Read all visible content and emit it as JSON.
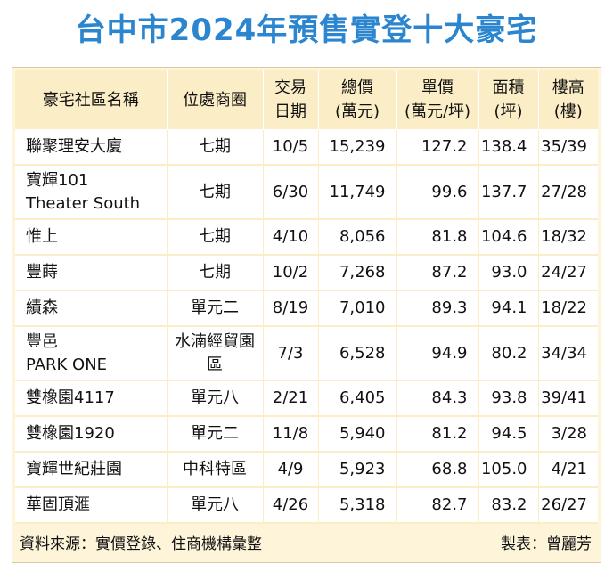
{
  "title": "台中市2024年預售實登十大豪宅",
  "headers": [
    {
      "l1": "豪宅社區名稱",
      "l2": ""
    },
    {
      "l1": "位處商圈",
      "l2": ""
    },
    {
      "l1": "交易",
      "l2": "日期"
    },
    {
      "l1": "總價",
      "l2": "(萬元)"
    },
    {
      "l1": "單價",
      "l2": "(萬元/坪)"
    },
    {
      "l1": "面積",
      "l2": "(坪)"
    },
    {
      "l1": "樓高",
      "l2": "(樓)"
    }
  ],
  "rows": [
    {
      "name1": "聯聚理安大廈",
      "name2": "",
      "area1": "七期",
      "area2": "",
      "date": "10/5",
      "total": "15,239",
      "unit": "127.2",
      "size": "138.4",
      "floor": "35/39"
    },
    {
      "name1": "寶輝101",
      "name2": "Theater South",
      "area1": "七期",
      "area2": "",
      "date": "6/30",
      "total": "11,749",
      "unit": "99.6",
      "size": "137.7",
      "floor": "27/28"
    },
    {
      "name1": "惟上",
      "name2": "",
      "area1": "七期",
      "area2": "",
      "date": "4/10",
      "total": "8,056",
      "unit": "81.8",
      "size": "104.6",
      "floor": "18/32"
    },
    {
      "name1": "豐蒔",
      "name2": "",
      "area1": "七期",
      "area2": "",
      "date": "10/2",
      "total": "7,268",
      "unit": "87.2",
      "size": "93.0",
      "floor": "24/27"
    },
    {
      "name1": "績森",
      "name2": "",
      "area1": "單元二",
      "area2": "",
      "date": "8/19",
      "total": "7,010",
      "unit": "89.3",
      "size": "94.1",
      "floor": "18/22"
    },
    {
      "name1": "豐邑",
      "name2": "PARK ONE",
      "area1": "水湳",
      "area2": "經貿園區",
      "date": "7/3",
      "total": "6,528",
      "unit": "94.9",
      "size": "80.2",
      "floor": "34/34"
    },
    {
      "name1": "雙橡園4117",
      "name2": "",
      "area1": "單元八",
      "area2": "",
      "date": "2/21",
      "total": "6,405",
      "unit": "84.3",
      "size": "93.8",
      "floor": "39/41"
    },
    {
      "name1": "雙橡園1920",
      "name2": "",
      "area1": "單元二",
      "area2": "",
      "date": "11/8",
      "total": "5,940",
      "unit": "81.2",
      "size": "94.5",
      "floor": "3/28"
    },
    {
      "name1": "寶輝世紀莊園",
      "name2": "",
      "area1": "中科特區",
      "area2": "",
      "date": "4/9",
      "total": "5,923",
      "unit": "68.8",
      "size": "105.0",
      "floor": "4/21"
    },
    {
      "name1": "華固頂滙",
      "name2": "",
      "area1": "單元八",
      "area2": "",
      "date": "4/26",
      "total": "5,318",
      "unit": "82.7",
      "size": "83.2",
      "floor": "26/27"
    }
  ],
  "footer": {
    "source": "資料來源：實價登錄、住商機構彙整",
    "author": "製表：曾麗芳"
  }
}
